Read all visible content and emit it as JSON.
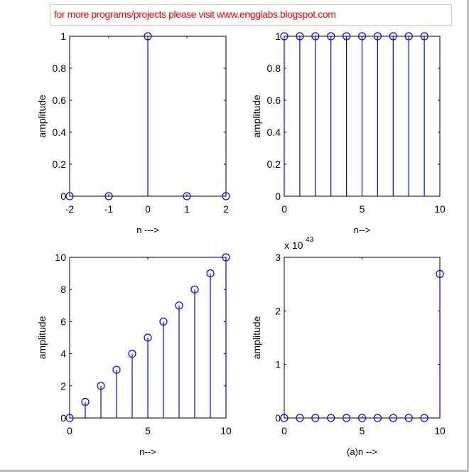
{
  "banner": {
    "text": "for more programs/projects please visit www.engglabs.blogspot.com"
  },
  "colors": {
    "stem": "#0000ff",
    "axes": "#000000",
    "banner_text": "#ff0000"
  },
  "chart_data": [
    {
      "type": "stem",
      "ylabel": "amplitude",
      "xlabel": "n --->",
      "xlim": [
        -2,
        2
      ],
      "ylim": [
        0,
        1
      ],
      "xticks": [
        "-2",
        "-1",
        "0",
        "1",
        "2"
      ],
      "yticks": [
        "0",
        "0.2",
        "0.4",
        "0.6",
        "0.8",
        "1"
      ],
      "x": [
        -2,
        -1,
        0,
        1,
        2
      ],
      "y": [
        0,
        0,
        1,
        0,
        0
      ],
      "exponent_label": ""
    },
    {
      "type": "stem",
      "ylabel": "amplitude",
      "xlabel": "n-->",
      "xlim": [
        0,
        10
      ],
      "ylim": [
        0,
        1
      ],
      "xticks": [
        "0",
        "5",
        "10"
      ],
      "yticks": [
        "0",
        "0.2",
        "0.4",
        "0.6",
        "0.8",
        "1"
      ],
      "x": [
        0,
        1,
        2,
        3,
        4,
        5,
        6,
        7,
        8,
        9
      ],
      "y": [
        1,
        1,
        1,
        1,
        1,
        1,
        1,
        1,
        1,
        1
      ],
      "exponent_label": ""
    },
    {
      "type": "stem",
      "ylabel": "amplitude",
      "xlabel": "n-->",
      "xlim": [
        0,
        10
      ],
      "ylim": [
        0,
        10
      ],
      "xticks": [
        "0",
        "5",
        "10"
      ],
      "yticks": [
        "0",
        "2",
        "4",
        "6",
        "8",
        "10"
      ],
      "x": [
        0,
        1,
        2,
        3,
        4,
        5,
        6,
        7,
        8,
        9,
        10
      ],
      "y": [
        0,
        1,
        2,
        3,
        4,
        5,
        6,
        7,
        8,
        9,
        10
      ],
      "exponent_label": ""
    },
    {
      "type": "stem",
      "ylabel": "amplitude",
      "xlabel": "(a)n -->",
      "xlim": [
        0,
        10
      ],
      "ylim": [
        0,
        3
      ],
      "xticks": [
        "0",
        "5",
        "10"
      ],
      "yticks": [
        "0",
        "1",
        "2",
        "3"
      ],
      "x": [
        0,
        1,
        2,
        3,
        4,
        5,
        6,
        7,
        8,
        9,
        10
      ],
      "y": [
        0,
        0,
        0,
        0,
        0,
        0,
        0,
        0,
        0,
        0,
        2.69
      ],
      "exponent_label": "x 10",
      "exponent_power": "43"
    }
  ]
}
